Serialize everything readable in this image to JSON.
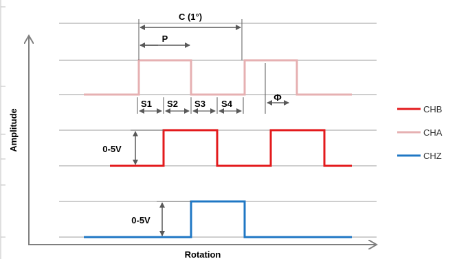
{
  "labels": {
    "period_label": "C (1°)",
    "pulse_label": "P",
    "states": [
      "S1",
      "S2",
      "S3",
      "S4"
    ],
    "phase_label": "Φ",
    "amplitude_b": "0-5V",
    "amplitude_z": "0-5V",
    "y_axis": "Amplitude",
    "x_axis": "Rotation"
  },
  "legend": [
    {
      "name": "CHB",
      "color": "#e31a1c"
    },
    {
      "name": "CHA",
      "color": "#e6b0b2"
    },
    {
      "name": "CHZ",
      "color": "#1f77c4"
    }
  ],
  "colors": {
    "grid": "#9e9e9e",
    "axis": "#7f7f7f",
    "annotation": "#595959"
  }
}
